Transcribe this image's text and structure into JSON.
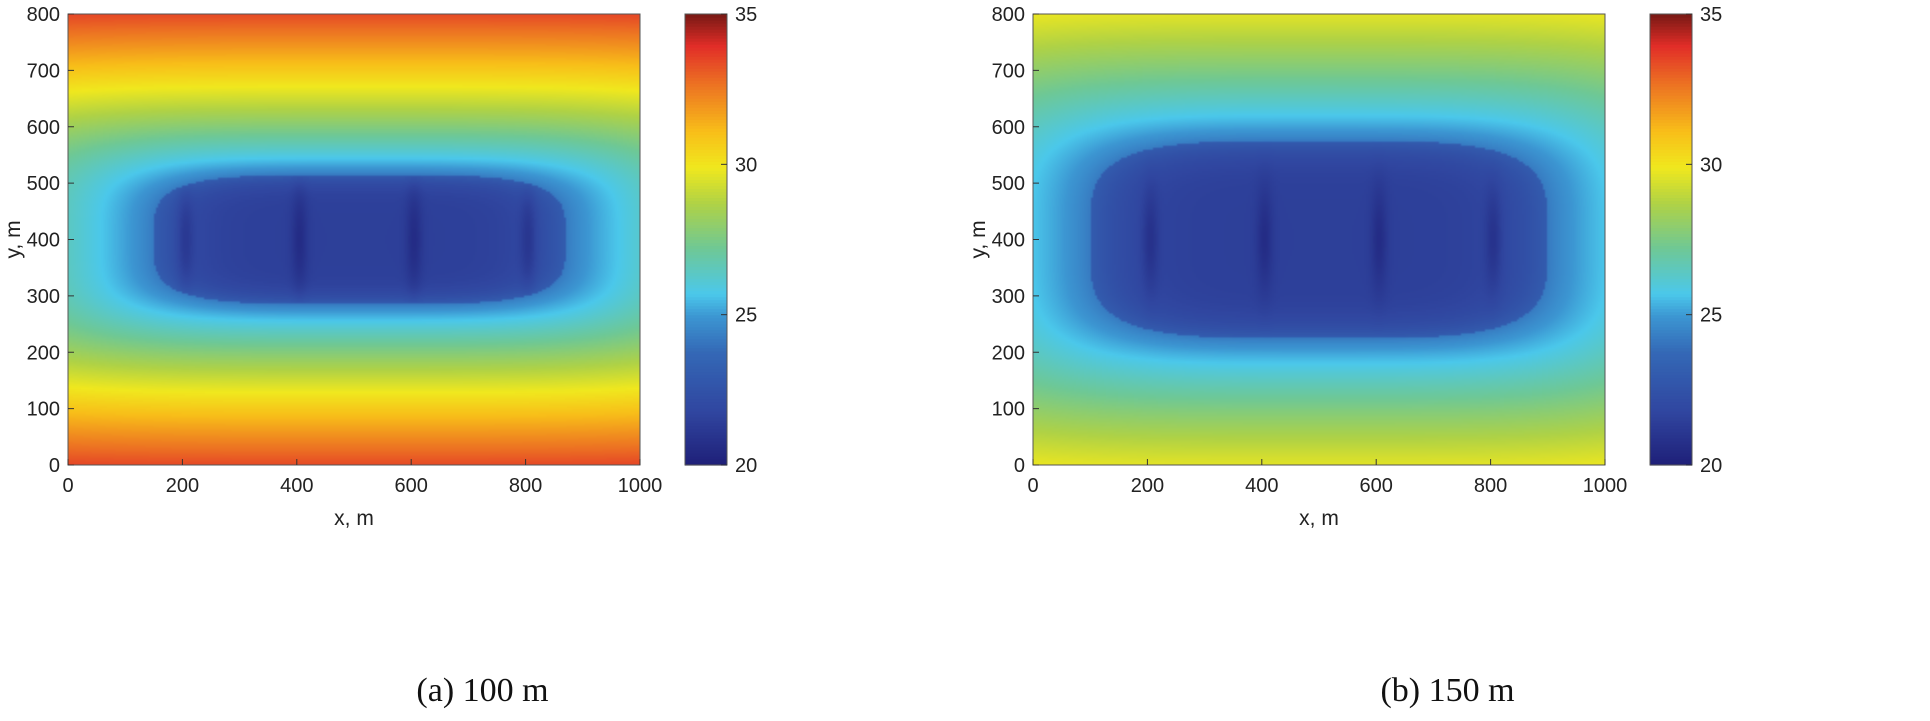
{
  "chart_data": [
    {
      "type": "heatmap",
      "caption": "(a) 100 m",
      "xlabel": "x, m",
      "ylabel": "y, m",
      "xlim": [
        0,
        1000
      ],
      "ylim": [
        0,
        800
      ],
      "xticks": [
        0,
        200,
        400,
        600,
        800,
        1000
      ],
      "yticks": [
        0,
        100,
        200,
        300,
        400,
        500,
        600,
        700,
        800
      ],
      "colorbar": {
        "range": [
          20,
          35
        ],
        "ticks": [
          20,
          25,
          30,
          35
        ],
        "colormap": "jet"
      },
      "field": {
        "centers_x": [
          205,
          405,
          605,
          805
        ],
        "center_y": 400,
        "zone_x": [
          150,
          870
        ],
        "zone_y": [
          285,
          515
        ],
        "inner_value": 21.5,
        "corner_value": 33.5
      }
    },
    {
      "type": "heatmap",
      "caption": "(b) 150 m",
      "xlabel": "x, m",
      "ylabel": "y, m",
      "xlim": [
        0,
        1000
      ],
      "ylim": [
        0,
        800
      ],
      "xticks": [
        0,
        200,
        400,
        600,
        800,
        1000
      ],
      "yticks": [
        0,
        100,
        200,
        300,
        400,
        500,
        600,
        700,
        800
      ],
      "colorbar": {
        "range": [
          20,
          35
        ],
        "ticks": [
          20,
          25,
          30,
          35
        ],
        "colormap": "jet"
      },
      "field": {
        "centers_x": [
          205,
          405,
          605,
          805
        ],
        "center_y": 400,
        "zone_x": [
          100,
          900
        ],
        "zone_y": [
          225,
          575
        ],
        "inner_value": 21.5,
        "corner_value": 29.8
      }
    }
  ]
}
